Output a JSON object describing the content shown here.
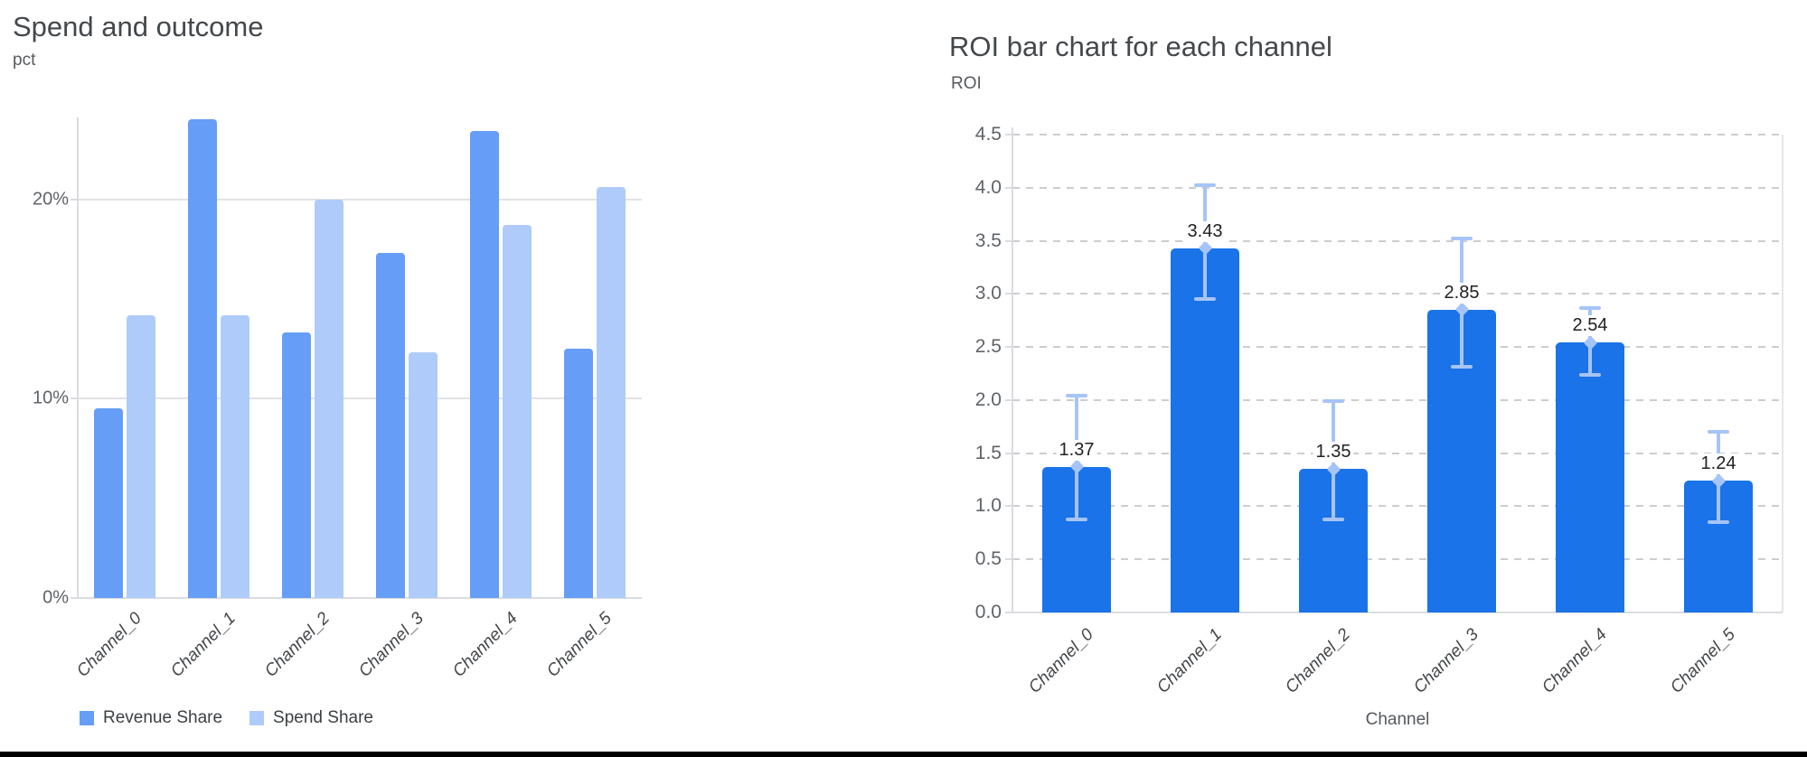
{
  "page": {
    "background": "#ffffff",
    "bottom_bar_color": "#000000"
  },
  "chart_data": [
    {
      "type": "bar",
      "title": "Spend and outcome",
      "ylabel": "pct",
      "xlabel": "",
      "categories": [
        "Channel_0",
        "Channel_1",
        "Channel_2",
        "Channel_3",
        "Channel_4",
        "Channel_5"
      ],
      "series": [
        {
          "name": "Revenue Share",
          "color": "#669DF6",
          "values": [
            9.5,
            24.0,
            13.3,
            17.3,
            23.4,
            12.5
          ]
        },
        {
          "name": "Spend Share",
          "color": "#AECBFA",
          "values": [
            14.2,
            14.2,
            20.0,
            12.3,
            18.7,
            20.6
          ]
        }
      ],
      "y_ticks": [
        {
          "value": 0,
          "label": "0%"
        },
        {
          "value": 10,
          "label": "10%"
        },
        {
          "value": 20,
          "label": "20%"
        }
      ],
      "ylim": [
        0,
        24.1
      ],
      "unit": "%",
      "grid": "solid",
      "legend_position": "bottom-left"
    },
    {
      "type": "bar",
      "title": "ROI bar chart for each channel",
      "ylabel": "ROI",
      "xlabel": "Channel",
      "categories": [
        "Channel_0",
        "Channel_1",
        "Channel_2",
        "Channel_3",
        "Channel_4",
        "Channel_5"
      ],
      "series": [
        {
          "name": "ROI",
          "color": "#1A73E8",
          "values": [
            1.37,
            3.43,
            1.35,
            2.85,
            2.54,
            1.24
          ]
        }
      ],
      "value_labels": [
        "1.37",
        "3.43",
        "1.35",
        "2.85",
        "2.54",
        "1.24"
      ],
      "error_bars": {
        "color": "#A6C4F7",
        "low": [
          0.88,
          2.95,
          0.88,
          2.31,
          2.24,
          0.85
        ],
        "high": [
          2.04,
          4.02,
          1.99,
          3.52,
          2.87,
          1.7
        ]
      },
      "y_ticks": {
        "min": 0,
        "max": 4.5,
        "step": 0.5,
        "decimals": 1
      },
      "ylim": [
        0,
        4.5
      ],
      "grid": "dashed",
      "legend_position": "none"
    }
  ]
}
